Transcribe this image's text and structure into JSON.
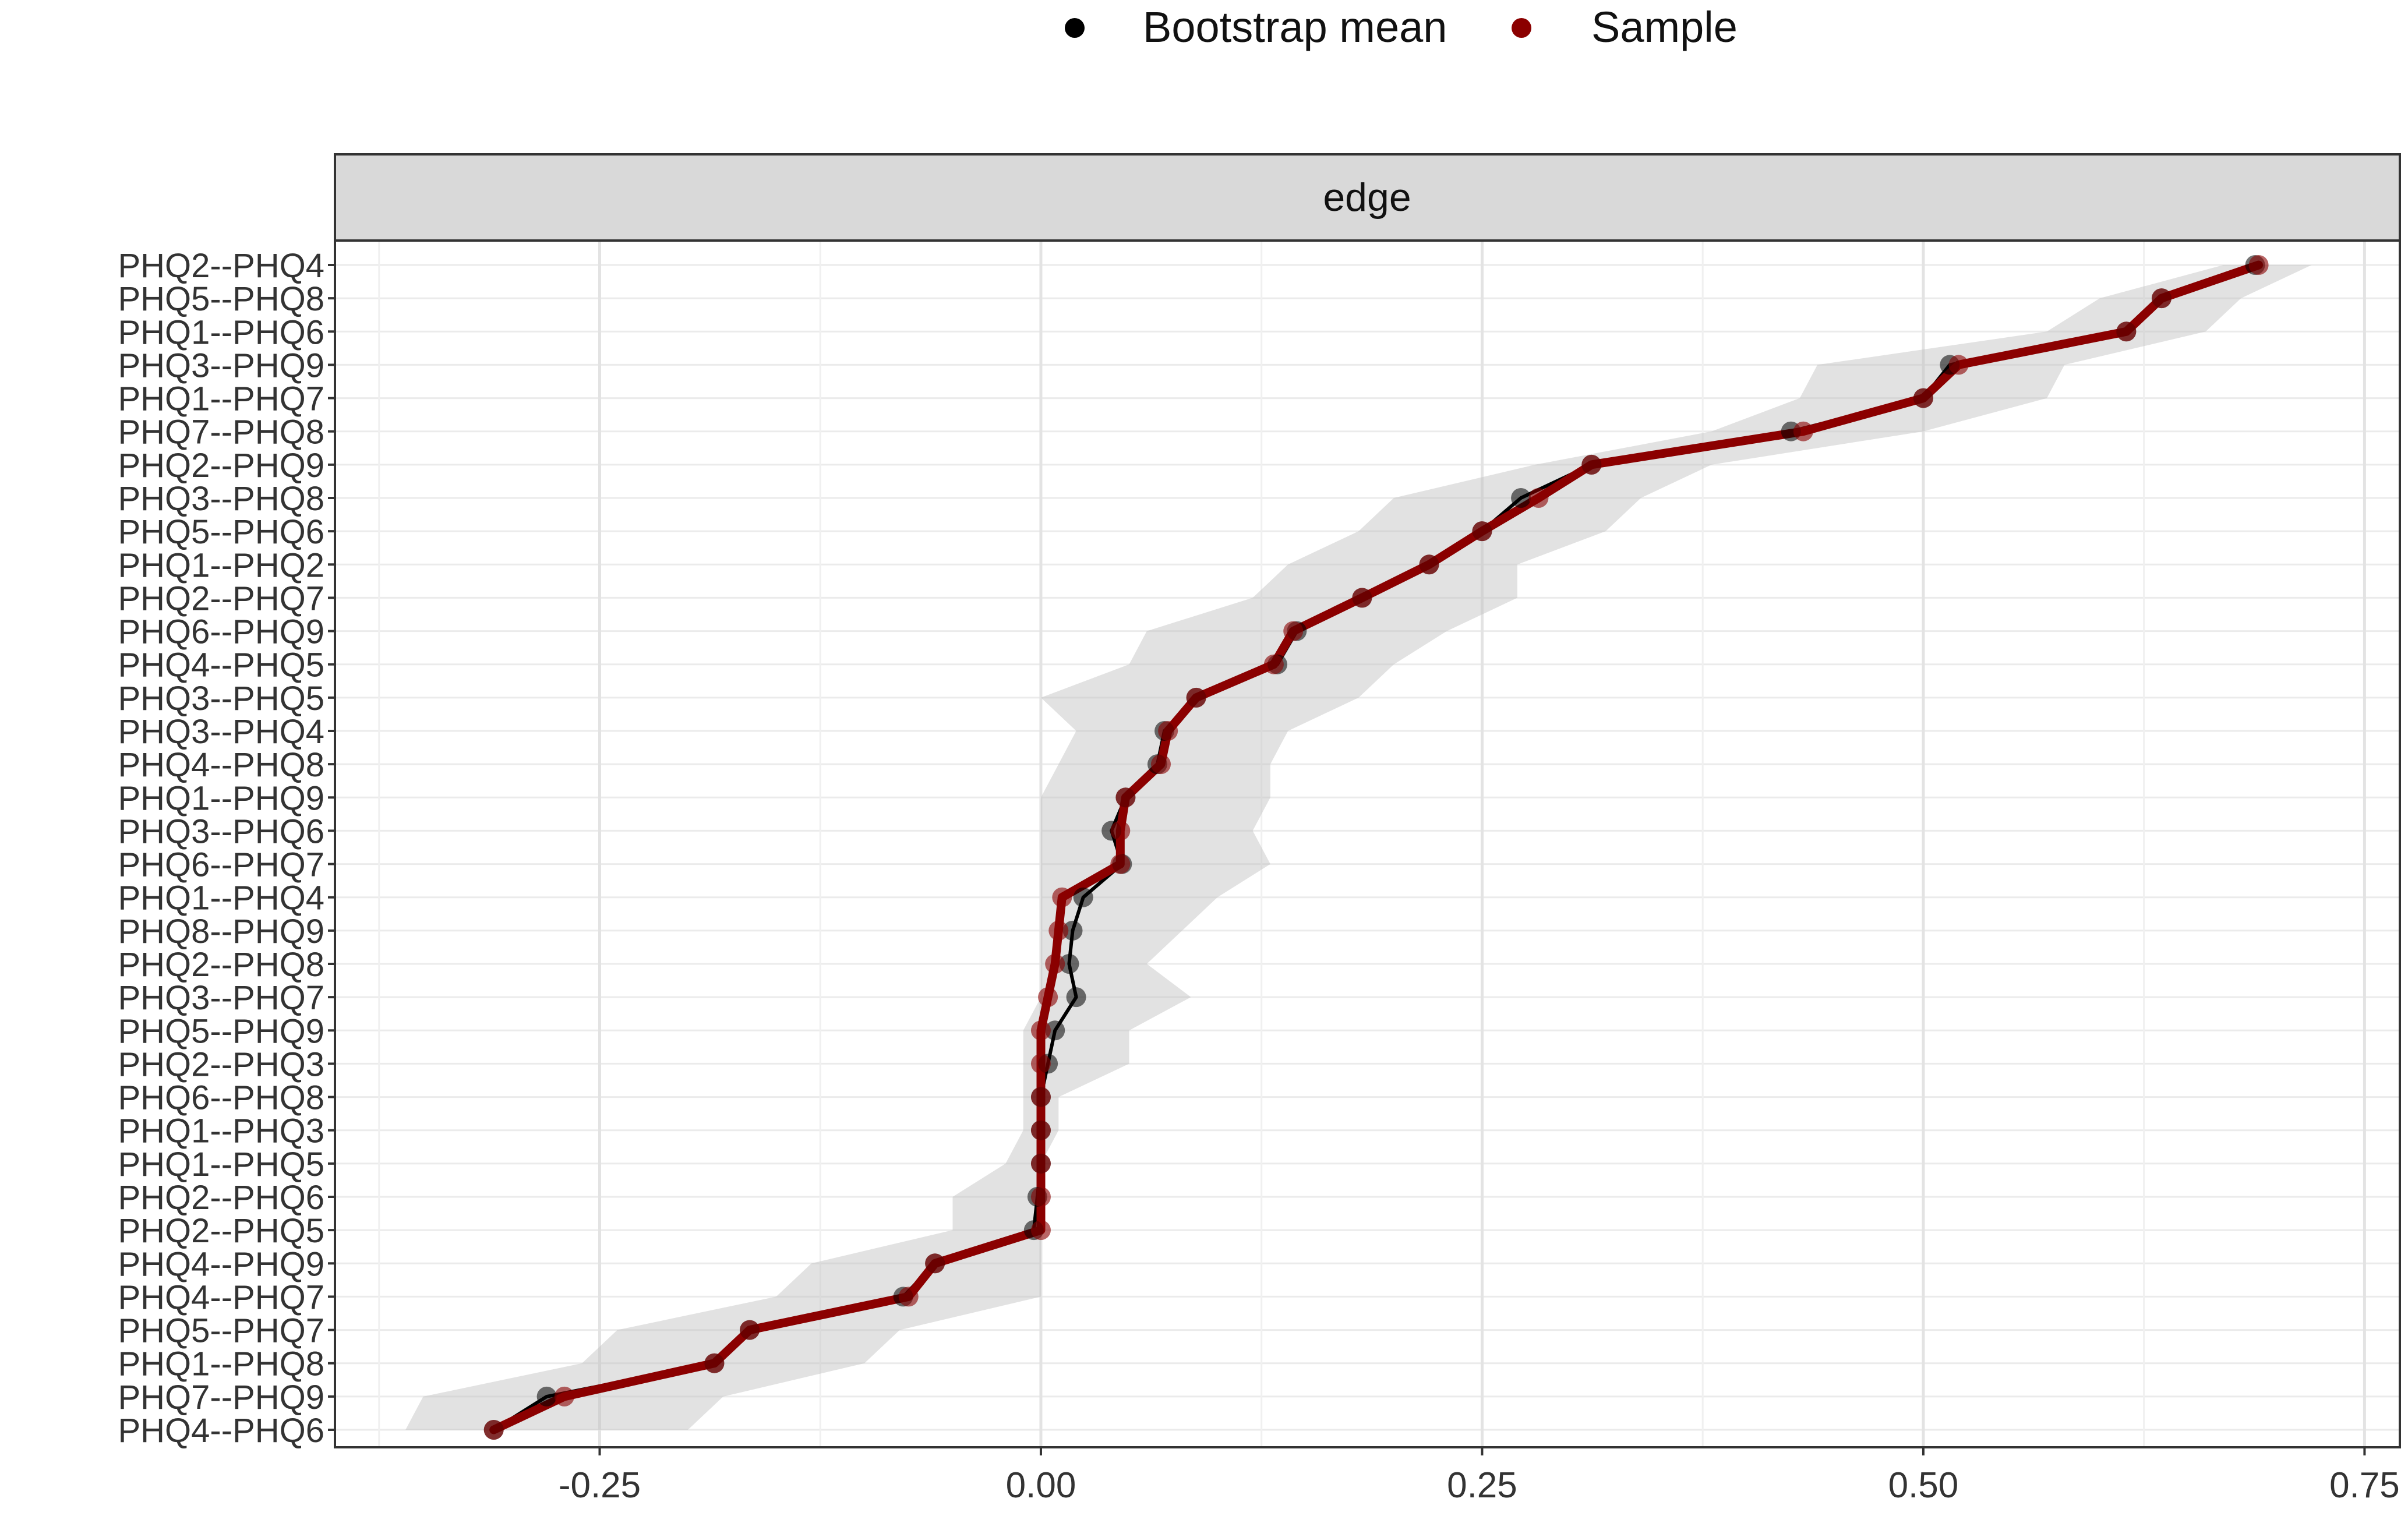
{
  "chart_data": {
    "type": "line",
    "facet_label": "edge",
    "legend": {
      "position": "top",
      "entries": [
        {
          "name": "Bootstrap mean",
          "color": "#000000"
        },
        {
          "name": "Sample",
          "color": "#8B0000"
        }
      ]
    },
    "xlim": [
      -0.4,
      0.77
    ],
    "x_ticks": [
      -0.25,
      0.0,
      0.25,
      0.5,
      0.75
    ],
    "x_tick_labels": [
      "-0.25",
      "0.00",
      "0.25",
      "0.50",
      "0.75"
    ],
    "grid": true,
    "colors": {
      "bootstrap": "#000000",
      "sample": "#8B0000",
      "ci_band": "#BEBEBE",
      "strip_bg": "#D9D9D9"
    },
    "categories": [
      "PHQ2--PHQ4",
      "PHQ5--PHQ8",
      "PHQ1--PHQ6",
      "PHQ3--PHQ9",
      "PHQ1--PHQ7",
      "PHQ7--PHQ8",
      "PHQ2--PHQ9",
      "PHQ3--PHQ8",
      "PHQ5--PHQ6",
      "PHQ1--PHQ2",
      "PHQ2--PHQ7",
      "PHQ6--PHQ9",
      "PHQ4--PHQ5",
      "PHQ3--PHQ5",
      "PHQ3--PHQ4",
      "PHQ4--PHQ8",
      "PHQ1--PHQ9",
      "PHQ3--PHQ6",
      "PHQ6--PHQ7",
      "PHQ1--PHQ4",
      "PHQ8--PHQ9",
      "PHQ2--PHQ8",
      "PHQ3--PHQ7",
      "PHQ5--PHQ9",
      "PHQ2--PHQ3",
      "PHQ6--PHQ8",
      "PHQ1--PHQ3",
      "PHQ1--PHQ5",
      "PHQ2--PHQ6",
      "PHQ2--PHQ5",
      "PHQ4--PHQ9",
      "PHQ4--PHQ7",
      "PHQ5--PHQ7",
      "PHQ1--PHQ8",
      "PHQ7--PHQ9",
      "PHQ4--PHQ6"
    ],
    "series": [
      {
        "name": "Sample",
        "values": [
          0.69,
          0.635,
          0.615,
          0.52,
          0.5,
          0.432,
          0.312,
          0.282,
          0.25,
          0.22,
          0.182,
          0.143,
          0.132,
          0.088,
          0.072,
          0.068,
          0.048,
          0.045,
          0.045,
          0.012,
          0.01,
          0.008,
          0.004,
          0.0,
          0.0,
          0.0,
          0.0,
          0.0,
          0.0,
          0.0,
          -0.06,
          -0.075,
          -0.165,
          -0.185,
          -0.27,
          -0.31
        ]
      },
      {
        "name": "Bootstrap mean",
        "values": [
          0.688,
          0.635,
          0.615,
          0.515,
          0.5,
          0.425,
          0.312,
          0.272,
          0.25,
          0.22,
          0.182,
          0.145,
          0.134,
          0.088,
          0.07,
          0.066,
          0.048,
          0.04,
          0.046,
          0.024,
          0.018,
          0.016,
          0.02,
          0.008,
          0.004,
          0.0,
          0.0,
          0.0,
          -0.002,
          -0.004,
          -0.06,
          -0.078,
          -0.165,
          -0.185,
          -0.28,
          -0.31
        ]
      }
    ],
    "ci_lower": [
      0.67,
      0.6,
      0.57,
      0.44,
      0.43,
      0.38,
      0.28,
      0.2,
      0.18,
      0.14,
      0.12,
      0.06,
      0.05,
      0.0,
      0.02,
      0.01,
      0.0,
      0.0,
      0.0,
      0.0,
      0.0,
      0.0,
      0.0,
      -0.01,
      -0.01,
      -0.01,
      -0.01,
      -0.02,
      -0.05,
      -0.05,
      -0.13,
      -0.15,
      -0.24,
      -0.26,
      -0.35,
      -0.36
    ],
    "ci_upper": [
      0.72,
      0.68,
      0.66,
      0.58,
      0.57,
      0.5,
      0.38,
      0.34,
      0.32,
      0.27,
      0.27,
      0.23,
      0.2,
      0.18,
      0.14,
      0.13,
      0.13,
      0.12,
      0.13,
      0.1,
      0.08,
      0.06,
      0.085,
      0.05,
      0.05,
      0.01,
      0.01,
      0.0,
      0.0,
      0.0,
      0.0,
      0.0,
      -0.08,
      -0.1,
      -0.18,
      -0.2
    ]
  }
}
